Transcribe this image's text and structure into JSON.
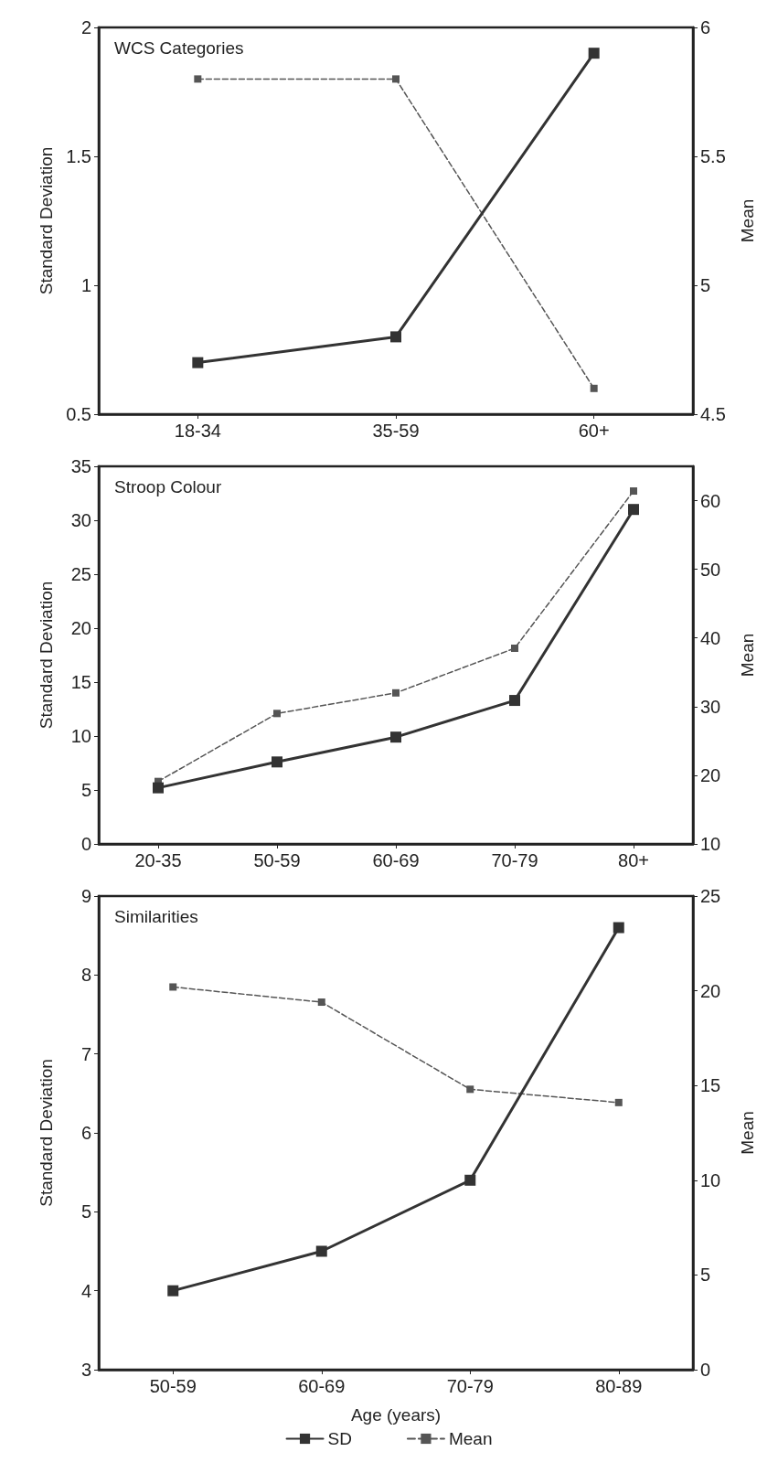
{
  "chart_data": [
    {
      "type": "line",
      "title": "WCS Categories",
      "categories": [
        "18-34",
        "35-59",
        "60+"
      ],
      "ylabel": "Standard Deviation",
      "y2label": "Mean",
      "ylim": [
        0.5,
        2
      ],
      "yticks": [
        0.5,
        1,
        1.5,
        2
      ],
      "y2lim": [
        4.5,
        6
      ],
      "y2ticks": [
        4.5,
        5,
        5.5,
        6
      ],
      "marker": "square",
      "legend": false,
      "grid": false,
      "series": [
        {
          "color": "#333333",
          "line_style": "solid",
          "values": [
            0.7,
            0.8,
            1.9
          ]
        },
        {
          "color": "#555555",
          "line_style": "dashed",
          "axis": "y2",
          "values": [
            5.8,
            5.8,
            4.6
          ]
        }
      ]
    },
    {
      "type": "line",
      "title": "Stroop Colour",
      "categories": [
        "20-35",
        "50-59",
        "60-69",
        "70-79",
        "80+"
      ],
      "ylabel": "Standard Deviation",
      "y2label": "Mean",
      "ylim": [
        0,
        35
      ],
      "yticks": [
        0,
        5,
        10,
        15,
        20,
        25,
        30,
        35
      ],
      "y2lim": [
        10,
        65
      ],
      "y2ticks": [
        10,
        20,
        30,
        40,
        50,
        60
      ],
      "marker": "square",
      "legend": false,
      "grid": false,
      "series": [
        {
          "color": "#333333",
          "line_style": "solid",
          "values": [
            5.2,
            7.6,
            9.9,
            13.3,
            31
          ]
        },
        {
          "color": "#555555",
          "line_style": "dashed",
          "axis": "y2",
          "values": [
            19.1,
            29,
            32,
            38.5,
            61.4
          ]
        }
      ]
    },
    {
      "type": "line",
      "title": "Similarities",
      "categories": [
        "50-59",
        "60-69",
        "70-79",
        "80-89"
      ],
      "xlabel": "Age (years)",
      "ylabel": "Standard Deviation",
      "y2label": "Mean",
      "ylim": [
        3,
        9
      ],
      "yticks": [
        3,
        4,
        5,
        6,
        7,
        8,
        9
      ],
      "y2lim": [
        0,
        25
      ],
      "y2ticks": [
        0,
        5,
        10,
        15,
        20,
        25
      ],
      "marker": "square",
      "legend": "bottom",
      "grid": false,
      "series": [
        {
          "name": "SD",
          "color": "#333333",
          "line_style": "solid",
          "values": [
            4,
            4.5,
            5.4,
            8.6
          ]
        },
        {
          "name": "Mean",
          "color": "#555555",
          "line_style": "dashed",
          "axis": "y2",
          "values": [
            20.2,
            19.4,
            14.8,
            14.1
          ]
        }
      ]
    }
  ]
}
